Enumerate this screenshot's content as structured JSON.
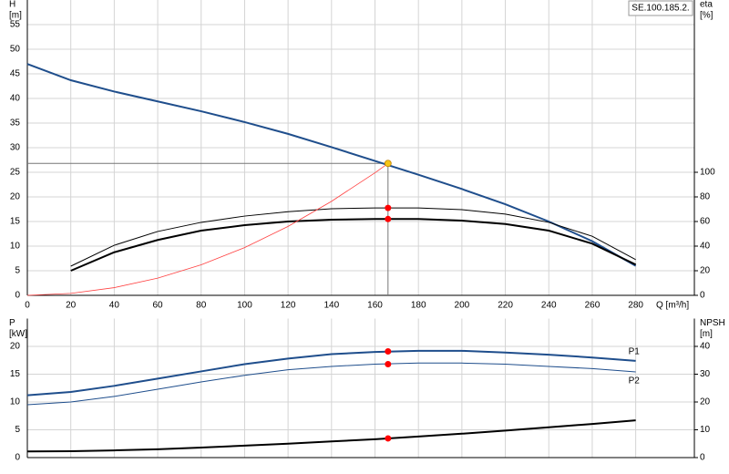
{
  "chart_data": [
    {
      "type": "line",
      "id_label": "SE.100.185.2.",
      "y_axis_title": "H",
      "y_axis_unit": "[m]",
      "y2_axis_title": "eta",
      "y2_axis_unit": "[%]",
      "x_axis_label": "Q [m³/h]",
      "x": [
        0,
        20,
        40,
        60,
        80,
        100,
        120,
        140,
        160,
        180,
        200,
        220,
        240,
        260,
        280
      ],
      "xlim": [
        0,
        307
      ],
      "xticks": [
        0,
        20,
        40,
        60,
        80,
        100,
        120,
        140,
        160,
        180,
        200,
        220,
        240,
        260,
        280
      ],
      "ylim": [
        0,
        60
      ],
      "yticks": [
        0,
        5,
        10,
        15,
        20,
        25,
        30,
        35,
        40,
        45,
        50,
        55
      ],
      "y2lim": [
        0,
        240
      ],
      "y2ticks": [
        0,
        20,
        40,
        60,
        80,
        100
      ],
      "grid": true,
      "series": [
        {
          "color": "#1f4e8c",
          "axis": "y",
          "values": [
            47,
            43.7,
            41.4,
            39.4,
            37.4,
            35.2,
            32.8,
            30.1,
            27.3,
            24.5,
            21.6,
            18.5,
            15,
            11,
            6
          ]
        },
        {
          "color": "#000000",
          "axis": "y2",
          "values": [
            null,
            23.7,
            40.7,
            51.9,
            59.3,
            64.4,
            68,
            70.4,
            71,
            71,
            69.6,
            66,
            59.3,
            48,
            29
          ]
        },
        {
          "color": "#000000",
          "axis": "y2",
          "values": [
            null,
            20,
            35,
            45,
            52.6,
            57,
            60,
            61.5,
            62,
            62,
            60.7,
            58,
            52.6,
            42,
            25
          ]
        },
        {
          "color": "#ff4040",
          "axis": "y",
          "x": [
            0,
            20,
            40,
            60,
            80,
            100,
            120,
            140,
            160,
            166
          ],
          "values": [
            0,
            0.39,
            1.56,
            3.5,
            6.2,
            9.7,
            14,
            19.1,
            24.9,
            26.8
          ]
        }
      ],
      "markers": [
        {
          "x": 166,
          "y": 26.8,
          "axis": "y",
          "color": "#f5c518"
        },
        {
          "x": 166,
          "y": 71,
          "axis": "y2",
          "color": "#ff0000"
        },
        {
          "x": 166,
          "y": 62,
          "axis": "y2",
          "color": "#ff0000"
        }
      ]
    },
    {
      "type": "line",
      "y_axis_title": "P",
      "y_axis_unit": "[kW]",
      "y2_axis_title": "NPSH",
      "y2_axis_unit": "[m]",
      "x": [
        0,
        20,
        40,
        60,
        80,
        100,
        120,
        140,
        160,
        180,
        200,
        220,
        240,
        260,
        280
      ],
      "xlim": [
        0,
        307
      ],
      "xticks": [
        0,
        20,
        40,
        60,
        80,
        100,
        120,
        140,
        160,
        180,
        200,
        220,
        240,
        260,
        280
      ],
      "ylim": [
        0,
        25
      ],
      "yticks": [
        0,
        5,
        10,
        15,
        20
      ],
      "y2lim": [
        0,
        50
      ],
      "y2ticks": [
        0,
        10,
        20,
        30,
        40
      ],
      "grid": true,
      "series": [
        {
          "name": "P1",
          "color": "#1f4e8c",
          "axis": "y",
          "values": [
            11.2,
            11.8,
            12.9,
            14.2,
            15.5,
            16.8,
            17.8,
            18.6,
            19,
            19.2,
            19.2,
            18.9,
            18.5,
            18,
            17.4
          ]
        },
        {
          "name": "P2",
          "color": "#1f4e8c",
          "axis": "y",
          "values": [
            9.5,
            10,
            11,
            12.3,
            13.6,
            14.8,
            15.8,
            16.4,
            16.8,
            17,
            17,
            16.8,
            16.4,
            16,
            15.4
          ]
        },
        {
          "color": "#000000",
          "axis": "y2",
          "values": [
            2.2,
            2.3,
            2.6,
            3,
            3.6,
            4.3,
            5,
            5.8,
            6.6,
            7.6,
            8.6,
            9.7,
            10.9,
            12.1,
            13.4
          ]
        }
      ],
      "markers": [
        {
          "x": 166,
          "y": 19.1,
          "axis": "y",
          "color": "#ff0000"
        },
        {
          "x": 166,
          "y": 16.8,
          "axis": "y",
          "color": "#ff0000"
        },
        {
          "x": 166,
          "y": 6.9,
          "axis": "y2",
          "color": "#ff0000"
        }
      ]
    }
  ]
}
